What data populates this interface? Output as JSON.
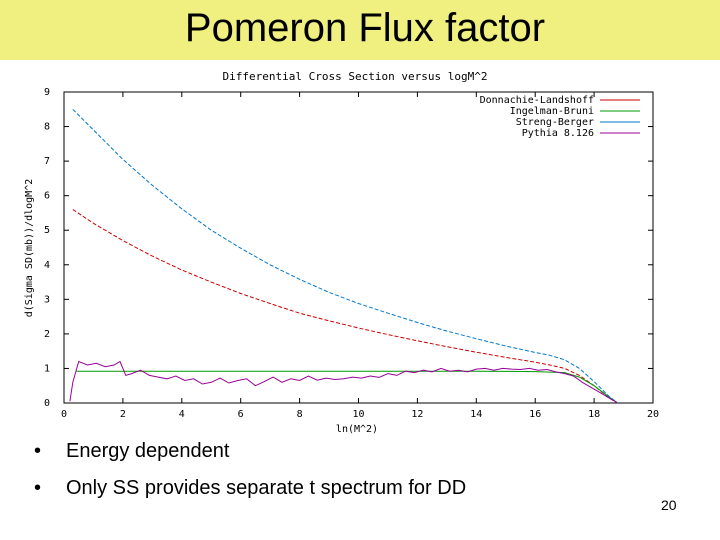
{
  "slide": {
    "title": "Pomeron Flux factor",
    "bullets": [
      "Energy  dependent",
      "Only SS provides separate t spectrum for DD"
    ],
    "page_number": "20"
  },
  "colors": {
    "title_band": "#f0f080",
    "series": [
      "#cc0000",
      "#009900",
      "#0077cc",
      "#990099"
    ]
  },
  "chart_data": {
    "type": "line",
    "title": "Differential Cross Section versus logM^2",
    "xlabel": "ln(M^2)",
    "ylabel": "d(Sigma SD(mb))/dlogM^2",
    "xlim": [
      0,
      20
    ],
    "ylim": [
      0,
      9
    ],
    "xticks": [
      0,
      2,
      4,
      6,
      8,
      10,
      12,
      14,
      16,
      18,
      20
    ],
    "yticks": [
      0,
      1,
      2,
      3,
      4,
      5,
      6,
      7,
      8,
      9
    ],
    "legend_position": "top-right",
    "series": [
      {
        "name": "Donnachie-Landshoff",
        "color": "#cc0000",
        "dashed": true,
        "x": [
          0.3,
          1,
          2,
          3,
          4,
          5,
          6,
          7,
          8,
          9,
          10,
          11,
          12,
          13,
          14,
          15,
          16,
          16.5,
          17,
          17.5,
          18,
          18.5,
          18.8
        ],
        "y": [
          5.6,
          5.2,
          4.7,
          4.25,
          3.85,
          3.5,
          3.17,
          2.88,
          2.6,
          2.38,
          2.17,
          1.98,
          1.8,
          1.63,
          1.47,
          1.32,
          1.18,
          1.1,
          1.0,
          0.8,
          0.5,
          0.15,
          0.0
        ]
      },
      {
        "name": "Ingelman-Bruni",
        "color": "#009900",
        "dashed": false,
        "x": [
          0.4,
          1,
          2,
          4,
          6,
          8,
          10,
          12,
          14,
          16,
          17,
          17.5,
          18,
          18.5,
          18.8
        ],
        "y": [
          0.92,
          0.92,
          0.92,
          0.92,
          0.92,
          0.92,
          0.92,
          0.92,
          0.92,
          0.91,
          0.88,
          0.75,
          0.5,
          0.18,
          0.0
        ]
      },
      {
        "name": "Streng-Berger",
        "color": "#0077cc",
        "dashed": true,
        "x": [
          0.3,
          1,
          2,
          3,
          4,
          5,
          6,
          7,
          8,
          9,
          10,
          11,
          12,
          13,
          14,
          15,
          16,
          16.5,
          17,
          17.5,
          18,
          18.5,
          18.8
        ],
        "y": [
          8.5,
          7.9,
          7.05,
          6.3,
          5.62,
          5.0,
          4.48,
          4.0,
          3.58,
          3.2,
          2.88,
          2.6,
          2.33,
          2.08,
          1.86,
          1.65,
          1.46,
          1.38,
          1.25,
          1.0,
          0.62,
          0.2,
          0.0
        ]
      },
      {
        "name": "Pythia 8.126",
        "color": "#990099",
        "dashed": false,
        "x": [
          0.2,
          0.3,
          0.5,
          0.8,
          1.1,
          1.4,
          1.7,
          1.9,
          2.0,
          2.1,
          2.3,
          2.6,
          2.9,
          3.2,
          3.5,
          3.8,
          4.1,
          4.4,
          4.7,
          5.0,
          5.3,
          5.6,
          5.9,
          6.2,
          6.5,
          6.8,
          7.1,
          7.4,
          7.7,
          8.0,
          8.3,
          8.6,
          8.9,
          9.2,
          9.5,
          9.8,
          10.1,
          10.4,
          10.7,
          11.0,
          11.3,
          11.6,
          11.9,
          12.2,
          12.5,
          12.8,
          13.1,
          13.4,
          13.7,
          14.0,
          14.3,
          14.6,
          14.9,
          15.2,
          15.5,
          15.8,
          16.1,
          16.4,
          16.7,
          17.0,
          17.3,
          17.6,
          17.9,
          18.2,
          18.5,
          18.8
        ],
        "y": [
          0.05,
          0.6,
          1.2,
          1.1,
          1.15,
          1.05,
          1.1,
          1.2,
          1.0,
          0.8,
          0.85,
          0.95,
          0.8,
          0.75,
          0.7,
          0.78,
          0.65,
          0.7,
          0.55,
          0.6,
          0.72,
          0.58,
          0.65,
          0.7,
          0.5,
          0.62,
          0.75,
          0.6,
          0.7,
          0.65,
          0.78,
          0.66,
          0.72,
          0.68,
          0.7,
          0.75,
          0.72,
          0.78,
          0.74,
          0.85,
          0.8,
          0.92,
          0.88,
          0.95,
          0.9,
          1.0,
          0.92,
          0.95,
          0.9,
          0.98,
          1.0,
          0.95,
          1.0,
          0.98,
          0.97,
          1.0,
          0.95,
          0.97,
          0.9,
          0.85,
          0.78,
          0.6,
          0.45,
          0.3,
          0.15,
          0.0
        ]
      }
    ]
  }
}
